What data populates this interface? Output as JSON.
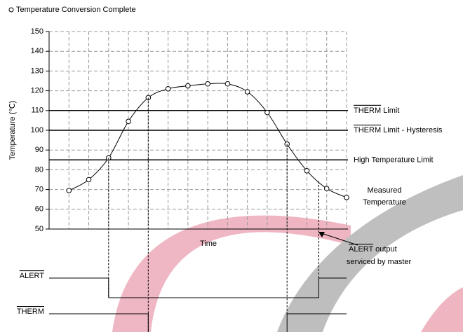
{
  "chart_data": {
    "type": "line",
    "y_label": "Temperature (℃)",
    "x_label": "Time",
    "x": [
      1,
      2,
      3,
      4,
      5,
      6,
      7,
      8,
      9,
      10,
      11,
      12,
      13,
      14,
      15
    ],
    "xlim": [
      0,
      15
    ],
    "xticks": [
      0,
      1,
      2,
      3,
      4,
      5,
      6,
      7,
      8,
      9,
      10,
      11,
      12,
      13,
      14,
      15
    ],
    "series": [
      {
        "name": "Temperature Conversion Complete",
        "color": "#000000",
        "values": [
          69.5,
          75,
          86,
          104.5,
          116.5,
          121,
          122.5,
          123.5,
          123.5,
          119.5,
          109,
          93,
          79.5,
          70.5,
          66
        ]
      }
    ],
    "ylim": [
      50,
      150
    ],
    "yticks": [
      50,
      60,
      70,
      80,
      90,
      100,
      110,
      120,
      130,
      140,
      150
    ],
    "grid": true,
    "limits": [
      {
        "value": 110,
        "overline": "THERM",
        "label": "Limit"
      },
      {
        "value": 100,
        "overline": "THERM",
        "label": "Limit - Hysteresis"
      },
      {
        "value": 85,
        "label": "High Temperature Limit"
      }
    ],
    "curve_label": [
      "Measured",
      "Temperature"
    ],
    "service_note": {
      "overline": "ALERT",
      "lines": [
        "output",
        "serviced by master"
      ]
    },
    "signals": [
      {
        "name": "ALERT",
        "transitions": [
          3,
          13.6
        ]
      },
      {
        "name": "THERM",
        "transitions": [
          5,
          12
        ]
      }
    ]
  }
}
